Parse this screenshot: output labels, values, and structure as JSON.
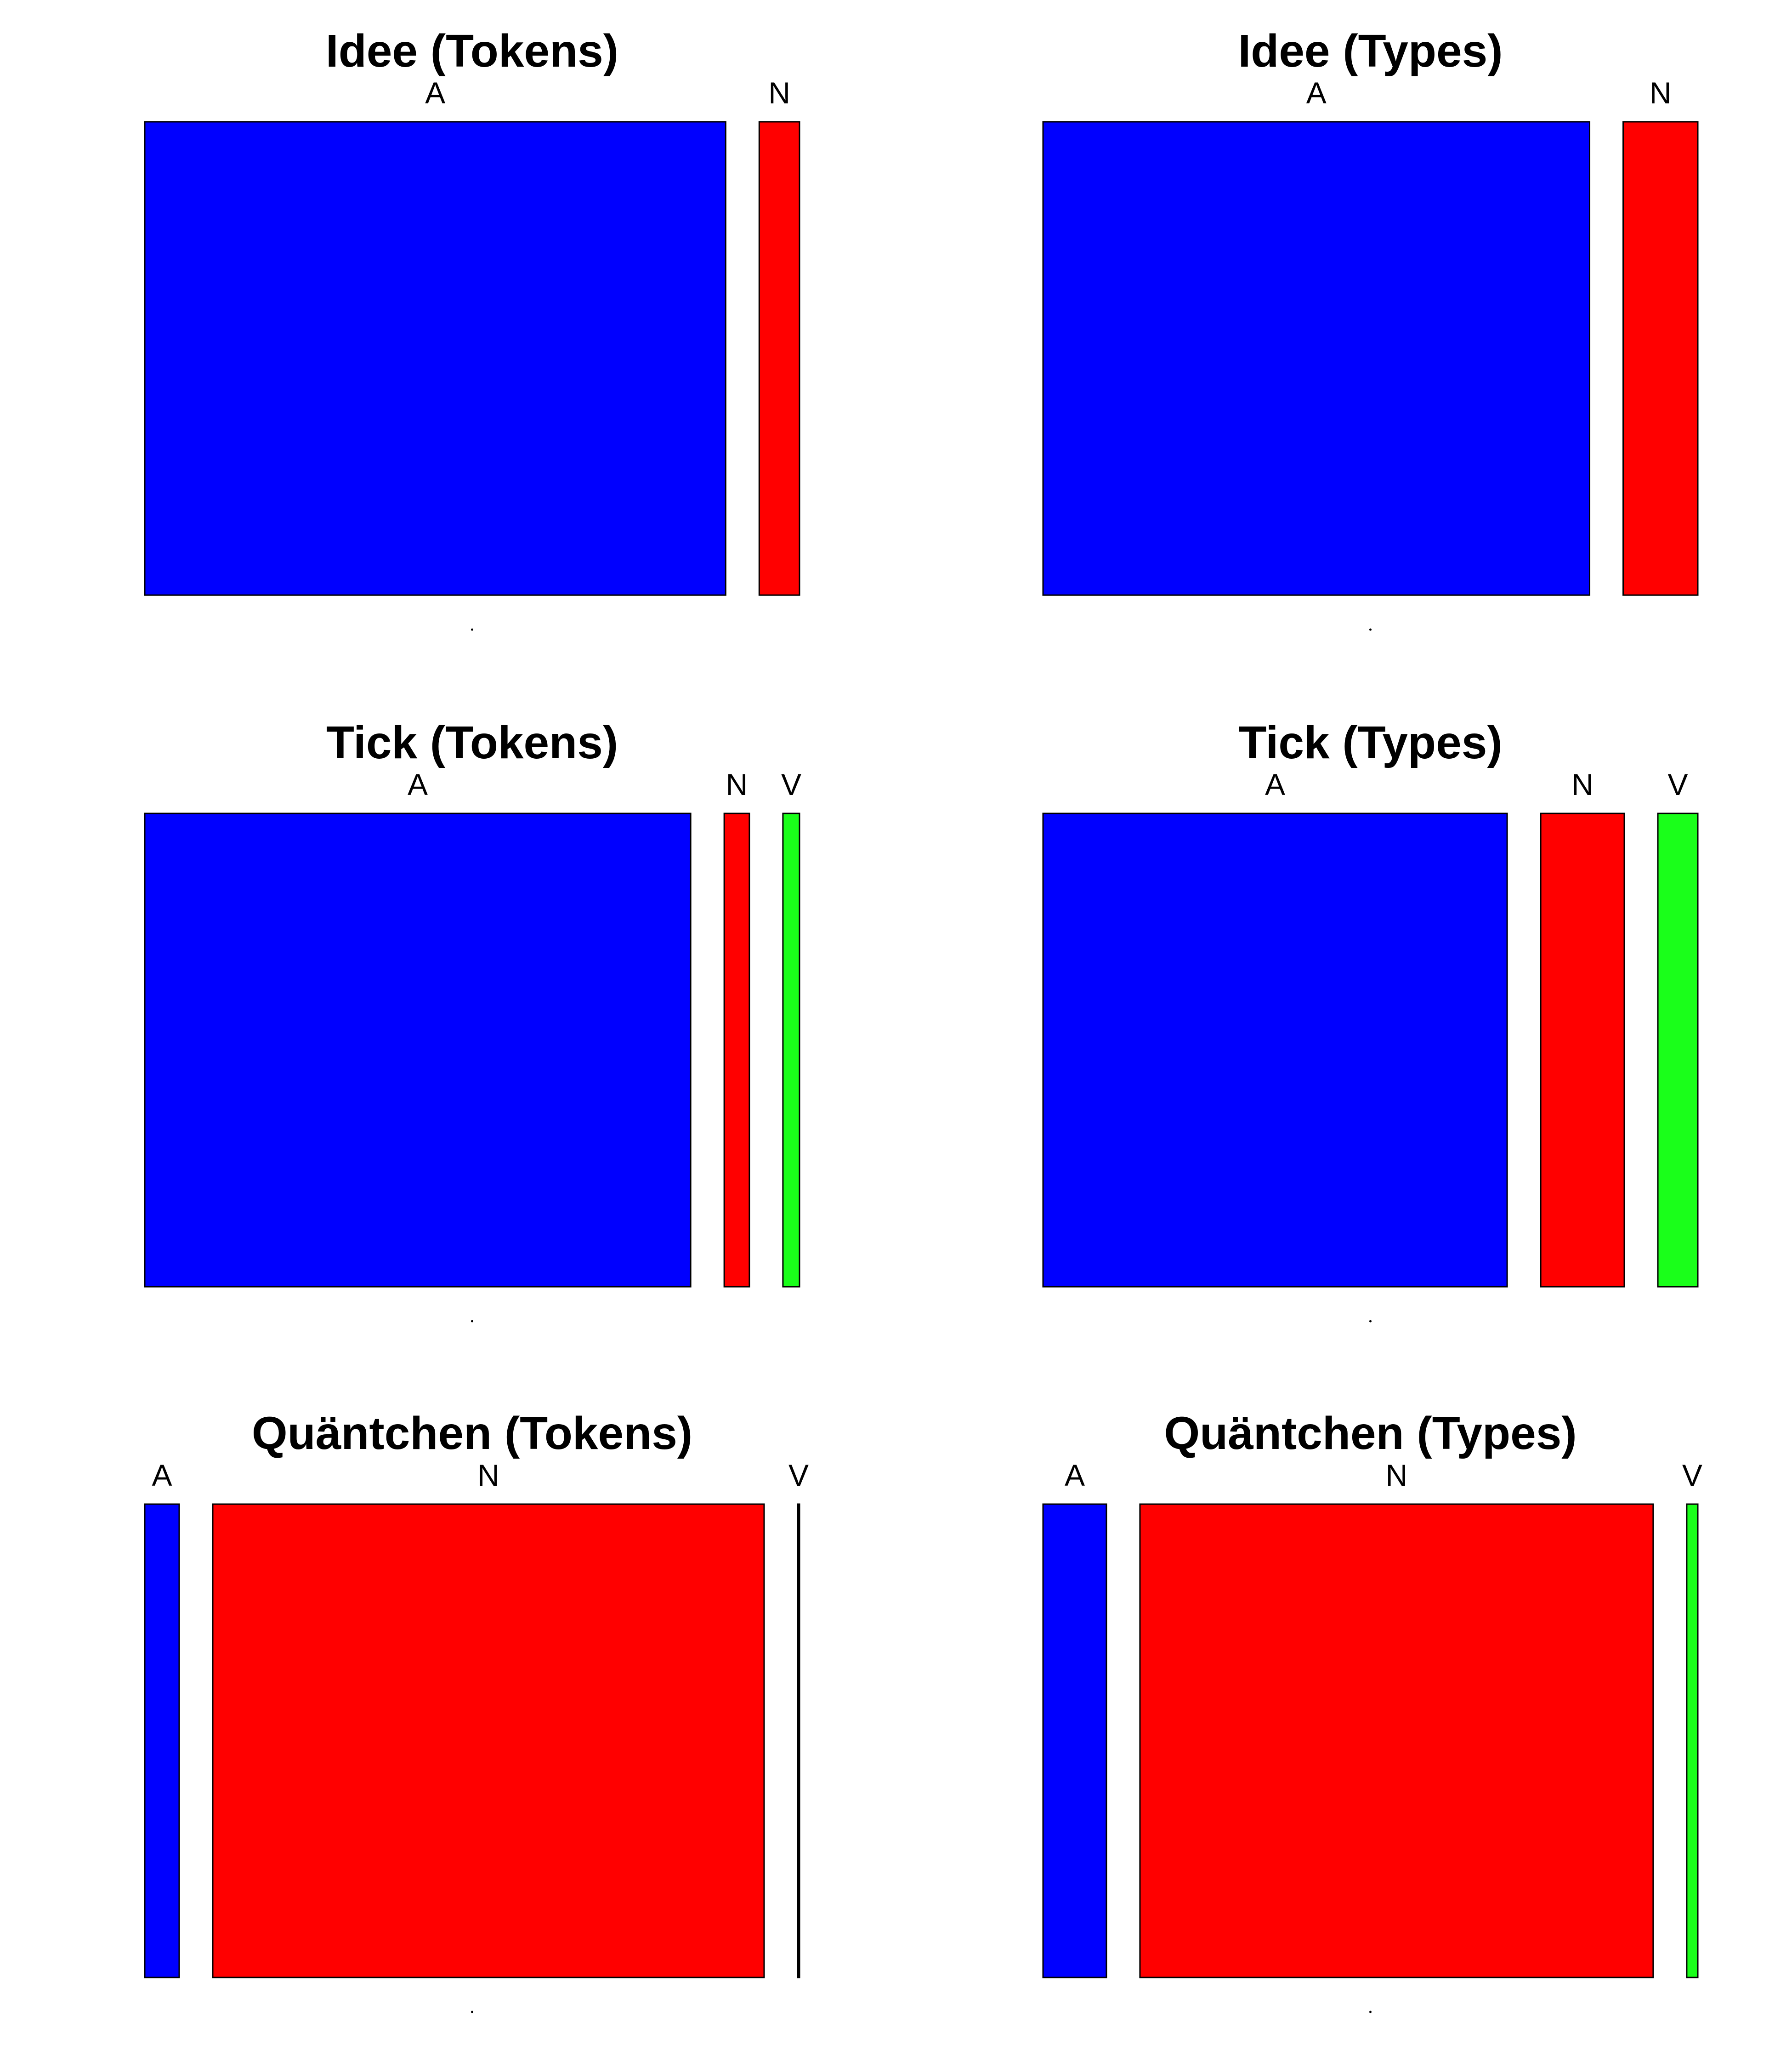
{
  "chart_data": [
    {
      "type": "spineplot",
      "title": "Idee (Tokens)",
      "categories": [
        "A",
        "N"
      ],
      "values": [
        0.894,
        0.062
      ],
      "colors": [
        "#0000ff",
        "#ff0000"
      ]
    },
    {
      "type": "spineplot",
      "title": "Idee (Types)",
      "categories": [
        "A",
        "N"
      ],
      "values": [
        0.842,
        0.115
      ],
      "colors": [
        "#0000ff",
        "#ff0000"
      ]
    },
    {
      "type": "spineplot",
      "title": "Tick (Tokens)",
      "categories": [
        "A",
        "N",
        "V"
      ],
      "values": [
        0.889,
        0.041,
        0.027
      ],
      "colors": [
        "#0000ff",
        "#ff0000",
        "#1aff1a"
      ]
    },
    {
      "type": "spineplot",
      "title": "Tick (Types)",
      "categories": [
        "A",
        "N",
        "V"
      ],
      "values": [
        0.755,
        0.136,
        0.065
      ],
      "colors": [
        "#0000ff",
        "#ff0000",
        "#1aff1a"
      ]
    },
    {
      "type": "spineplot",
      "title": "Quäntchen (Tokens)",
      "categories": [
        "A",
        "N",
        "V"
      ],
      "values": [
        0.056,
        0.896,
        0.003
      ],
      "colors": [
        "#0000ff",
        "#ff0000",
        "#000000"
      ]
    },
    {
      "type": "spineplot",
      "title": "Quäntchen (Types)",
      "categories": [
        "A",
        "N",
        "V"
      ],
      "values": [
        0.103,
        0.834,
        0.018
      ],
      "colors": [
        "#0000ff",
        "#ff0000",
        "#1aff1a"
      ]
    }
  ]
}
